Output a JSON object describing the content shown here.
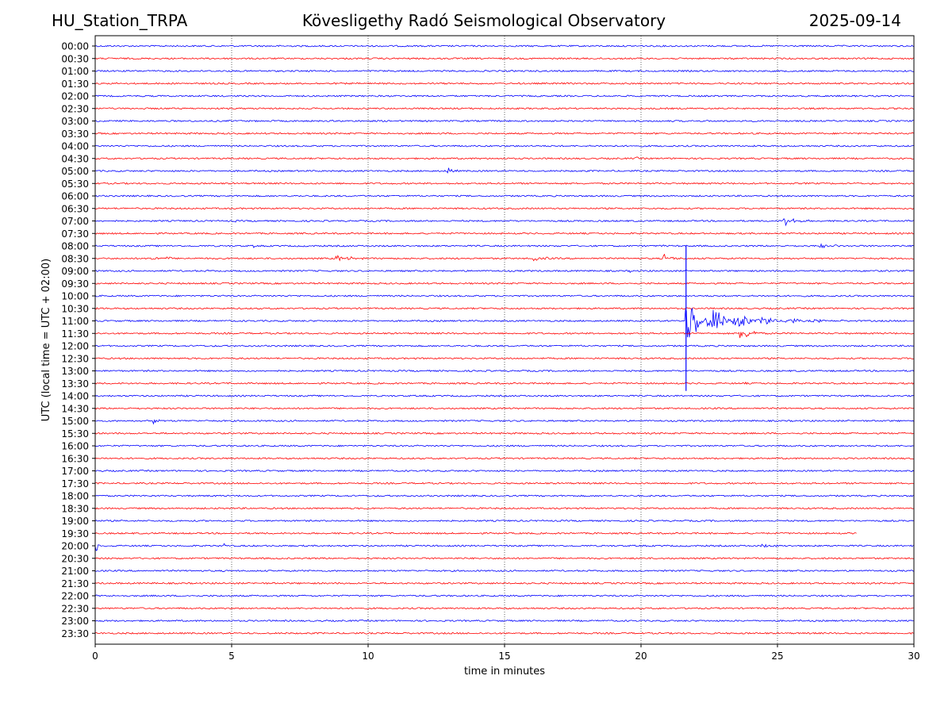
{
  "header": {
    "station": "HU_Station_TRPA",
    "observatory": "Kövesligethy Radó Seismological Observatory",
    "date": "2025-09-14"
  },
  "chart_data": {
    "type": "line",
    "title": "Kövesligethy Radó Seismological Observatory",
    "xlabel": "time in minutes",
    "ylabel": "UTC (local time = UTC + 02:00)",
    "xlim": [
      0,
      30
    ],
    "x_ticks": [
      "0",
      "5",
      "10",
      "15",
      "20",
      "25",
      "30"
    ],
    "x_grid": "dotted vertical lines at 5, 10, 15, 20, 25",
    "row_labels": [
      "00:00",
      "00:30",
      "01:00",
      "01:30",
      "02:00",
      "02:30",
      "03:00",
      "03:30",
      "04:00",
      "04:30",
      "05:00",
      "05:30",
      "06:00",
      "06:30",
      "07:00",
      "07:30",
      "08:00",
      "08:30",
      "09:00",
      "09:30",
      "10:00",
      "10:30",
      "11:00",
      "11:30",
      "12:00",
      "12:30",
      "13:00",
      "13:30",
      "14:00",
      "14:30",
      "15:00",
      "15:30",
      "16:00",
      "16:30",
      "17:00",
      "17:30",
      "18:00",
      "18:30",
      "19:00",
      "19:30",
      "20:00",
      "20:30",
      "21:00",
      "21:30",
      "22:00",
      "22:30",
      "23:00",
      "23:30"
    ],
    "row_colors": [
      "#0000ff",
      "#ff0000"
    ],
    "trace_end_minutes": [
      30,
      30,
      30,
      30,
      30,
      30,
      30,
      30,
      30,
      30,
      30,
      30,
      30,
      30,
      30,
      30,
      30,
      30,
      30,
      30,
      30,
      30,
      30,
      30,
      30,
      30,
      30,
      30,
      30,
      30,
      30,
      30,
      30,
      30,
      30,
      30,
      30,
      30,
      30,
      27.9,
      30,
      30,
      30,
      30,
      30,
      30,
      30,
      30
    ],
    "events": [
      {
        "row": 9,
        "start": 19.8,
        "end": 21.3,
        "amp": 0.14
      },
      {
        "row": 10,
        "start": 12.9,
        "end": 13.6,
        "amp": 0.5
      },
      {
        "row": 10,
        "start": 26.9,
        "end": 27.4,
        "amp": 0.2
      },
      {
        "row": 14,
        "start": 25.2,
        "end": 27.0,
        "amp": 0.5
      },
      {
        "row": 14,
        "start": 2.3,
        "end": 2.8,
        "amp": 0.14
      },
      {
        "row": 14,
        "start": 5.1,
        "end": 5.8,
        "amp": 0.14
      },
      {
        "row": 14,
        "start": 18.4,
        "end": 19.2,
        "amp": 0.14
      },
      {
        "row": 16,
        "start": 5.8,
        "end": 6.1,
        "amp": 0.3
      },
      {
        "row": 16,
        "start": 10.2,
        "end": 10.4,
        "amp": 0.3
      },
      {
        "row": 16,
        "start": 20.8,
        "end": 21.0,
        "amp": 0.8
      },
      {
        "row": 16,
        "start": 26.5,
        "end": 30.0,
        "amp": 0.2
      },
      {
        "row": 17,
        "start": 2.0,
        "end": 5.5,
        "amp": 0.25
      },
      {
        "row": 17,
        "start": 8.8,
        "end": 11.5,
        "amp": 0.3
      },
      {
        "row": 17,
        "start": 16.0,
        "end": 19.0,
        "amp": 0.25
      },
      {
        "row": 17,
        "start": 20.8,
        "end": 22.5,
        "amp": 0.4
      },
      {
        "row": 18,
        "start": 4.1,
        "end": 4.3,
        "amp": 0.3
      },
      {
        "row": 18,
        "start": 19.6,
        "end": 20.0,
        "amp": 0.2
      },
      {
        "row": 22,
        "start": 21.6,
        "end": 27.5,
        "amp": 1.8
      },
      {
        "row": 23,
        "start": 23.6,
        "end": 25.2,
        "amp": 0.7
      },
      {
        "row": 27,
        "start": 23.8,
        "end": 24.5,
        "amp": 0.12
      },
      {
        "row": 30,
        "start": 2.1,
        "end": 2.8,
        "amp": 0.45
      },
      {
        "row": 40,
        "start": 4.7,
        "end": 4.85,
        "amp": 0.55
      },
      {
        "row": 40,
        "start": 24.4,
        "end": 27.0,
        "amp": 0.2
      },
      {
        "row": 40,
        "start": 0.0,
        "end": 0.2,
        "amp": 1.2
      }
    ],
    "spikes": [
      {
        "row": 22,
        "minute": 21.65,
        "from_row": 16.0,
        "to_row": 27.6
      }
    ]
  }
}
